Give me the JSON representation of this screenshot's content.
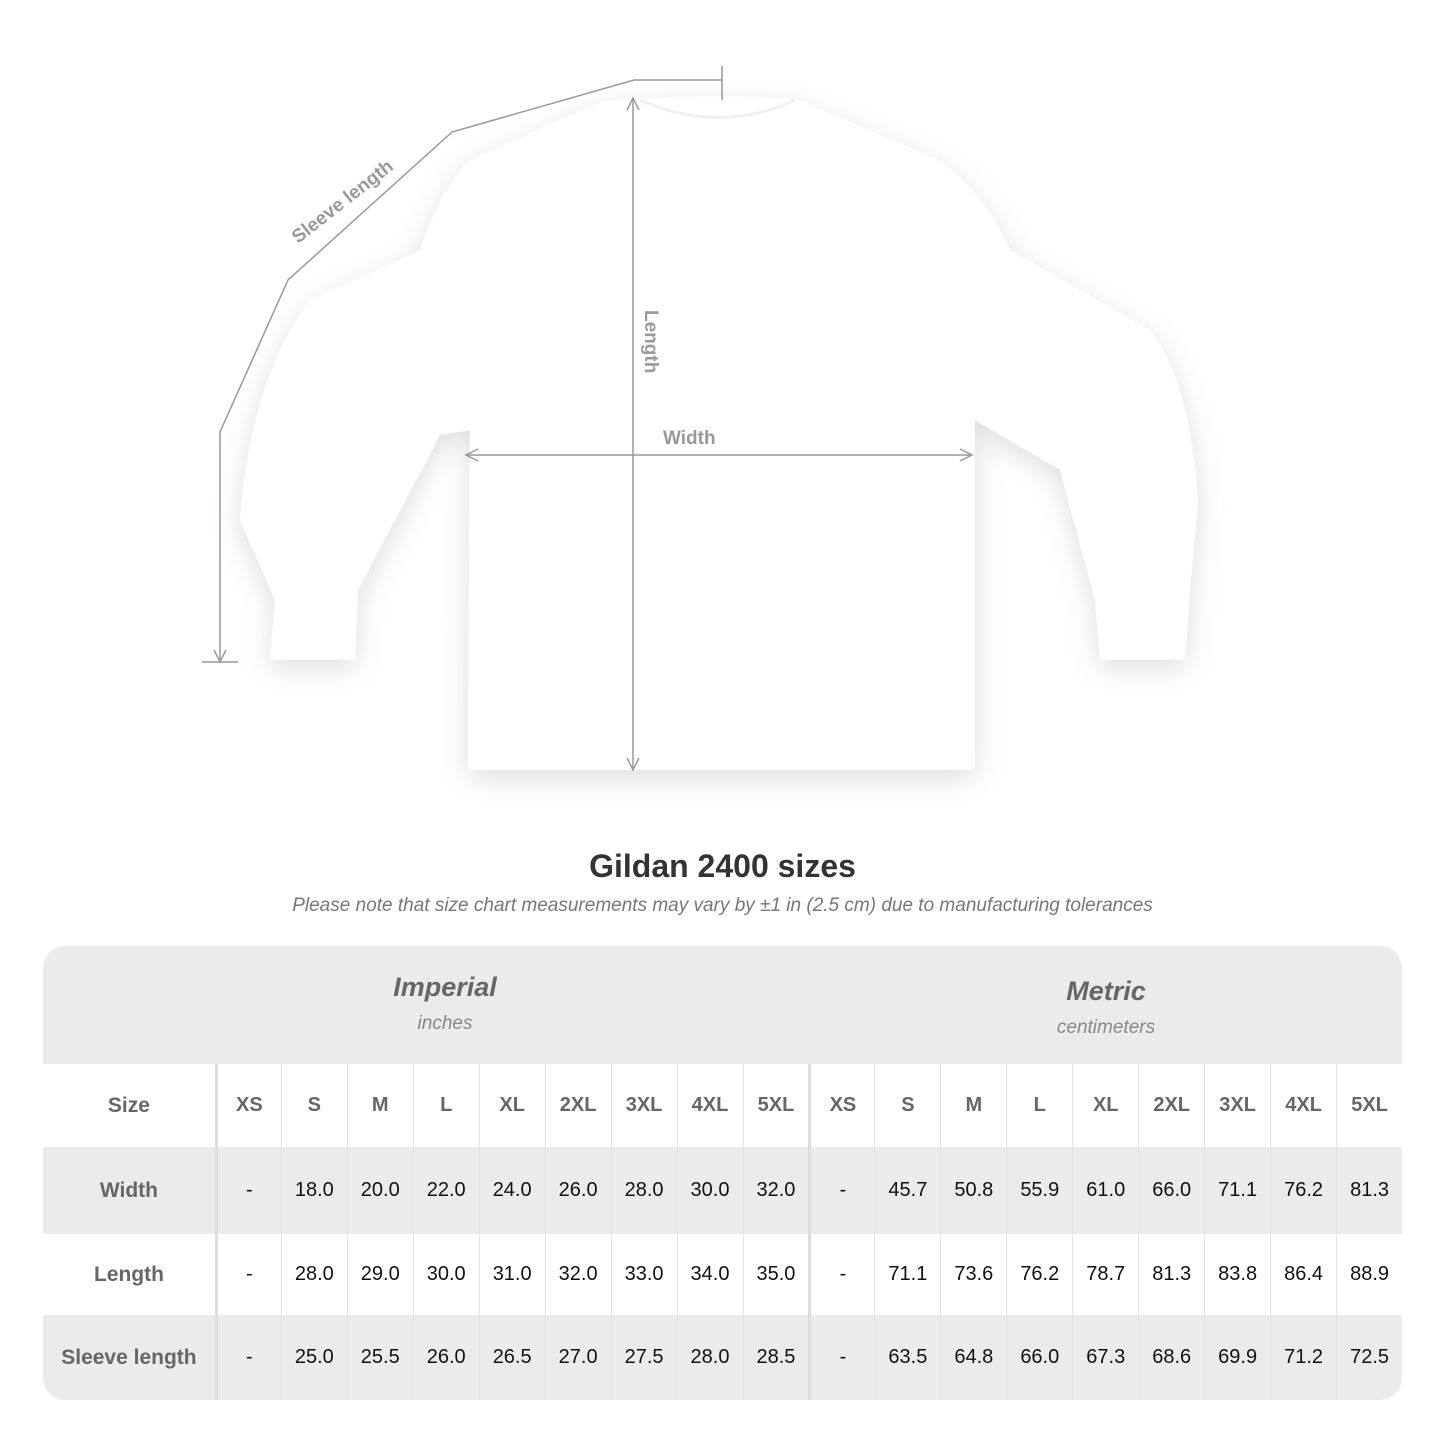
{
  "diagram": {
    "labels": {
      "sleeve": "Sleeve length",
      "length": "Length",
      "width": "Width"
    },
    "line_color": "#999999"
  },
  "title": "Gildan 2400 sizes",
  "note": "Please note that size chart measurements may vary by ±1 in (2.5 cm) due to manufacturing tolerances",
  "imperial": {
    "name": "Imperial",
    "unit": "inches"
  },
  "metric": {
    "name": "Metric",
    "unit": "centimeters"
  },
  "size_label": "Size",
  "sizes": [
    "XS",
    "S",
    "M",
    "L",
    "XL",
    "2XL",
    "3XL",
    "4XL",
    "5XL"
  ],
  "rows": [
    {
      "label": "Width",
      "imperial": [
        "-",
        "18.0",
        "20.0",
        "22.0",
        "24.0",
        "26.0",
        "28.0",
        "30.0",
        "32.0"
      ],
      "metric": [
        "-",
        "45.7",
        "50.8",
        "55.9",
        "61.0",
        "66.0",
        "71.1",
        "76.2",
        "81.3"
      ]
    },
    {
      "label": "Length",
      "imperial": [
        "-",
        "28.0",
        "29.0",
        "30.0",
        "31.0",
        "32.0",
        "33.0",
        "34.0",
        "35.0"
      ],
      "metric": [
        "-",
        "71.1",
        "73.6",
        "76.2",
        "78.7",
        "81.3",
        "83.8",
        "86.4",
        "88.9"
      ]
    },
    {
      "label": "Sleeve length",
      "imperial": [
        "-",
        "25.0",
        "25.5",
        "26.0",
        "26.5",
        "27.0",
        "27.5",
        "28.0",
        "28.5"
      ],
      "metric": [
        "-",
        "63.5",
        "64.8",
        "66.0",
        "67.3",
        "68.6",
        "69.9",
        "71.2",
        "72.5"
      ]
    }
  ]
}
